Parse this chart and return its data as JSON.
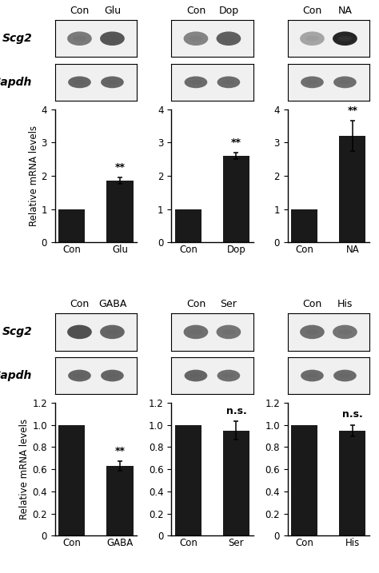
{
  "top_panels": [
    {
      "categories": [
        "Con",
        "Glu"
      ],
      "values": [
        1.0,
        1.85
      ],
      "errors": [
        0.0,
        0.1
      ],
      "ylim": [
        0,
        4
      ],
      "yticks": [
        0,
        1,
        2,
        3,
        4
      ],
      "sig_label": "**",
      "sig_bar_idx": 1,
      "scg2_alphas": [
        0.55,
        0.72
      ],
      "gapdh_alphas": [
        0.65,
        0.65
      ]
    },
    {
      "categories": [
        "Con",
        "Dop"
      ],
      "values": [
        1.0,
        2.6
      ],
      "errors": [
        0.0,
        0.1
      ],
      "ylim": [
        0,
        4
      ],
      "yticks": [
        0,
        1,
        2,
        3,
        4
      ],
      "sig_label": "**",
      "sig_bar_idx": 1,
      "scg2_alphas": [
        0.5,
        0.68
      ],
      "gapdh_alphas": [
        0.62,
        0.62
      ]
    },
    {
      "categories": [
        "Con",
        "NA"
      ],
      "values": [
        1.0,
        3.2
      ],
      "errors": [
        0.0,
        0.45
      ],
      "ylim": [
        0,
        4
      ],
      "yticks": [
        0,
        1,
        2,
        3,
        4
      ],
      "sig_label": "**",
      "sig_bar_idx": 1,
      "scg2_alphas": [
        0.35,
        0.95
      ],
      "gapdh_alphas": [
        0.6,
        0.6
      ]
    }
  ],
  "bottom_panels": [
    {
      "categories": [
        "Con",
        "GABA"
      ],
      "values": [
        1.0,
        0.63
      ],
      "errors": [
        0.0,
        0.04
      ],
      "ylim": [
        0,
        1.2
      ],
      "yticks": [
        0,
        0.2,
        0.4,
        0.6,
        0.8,
        1.0,
        1.2
      ],
      "sig_label": "**",
      "sig_bar_idx": 1,
      "scg2_alphas": [
        0.75,
        0.65
      ],
      "gapdh_alphas": [
        0.65,
        0.65
      ]
    },
    {
      "categories": [
        "Con",
        "Ser"
      ],
      "values": [
        1.0,
        0.95
      ],
      "errors": [
        0.0,
        0.08
      ],
      "ylim": [
        0,
        1.2
      ],
      "yticks": [
        0,
        0.2,
        0.4,
        0.6,
        0.8,
        1.0,
        1.2
      ],
      "sig_label": "n.s.",
      "sig_bar_idx": 1,
      "scg2_alphas": [
        0.6,
        0.58
      ],
      "gapdh_alphas": [
        0.65,
        0.6
      ]
    },
    {
      "categories": [
        "Con",
        "His"
      ],
      "values": [
        1.0,
        0.95
      ],
      "errors": [
        0.0,
        0.05
      ],
      "ylim": [
        0,
        1.2
      ],
      "yticks": [
        0,
        0.2,
        0.4,
        0.6,
        0.8,
        1.0,
        1.2
      ],
      "sig_label": "n.s.",
      "sig_bar_idx": 1,
      "scg2_alphas": [
        0.6,
        0.58
      ],
      "gapdh_alphas": [
        0.62,
        0.62
      ]
    }
  ],
  "bar_color": "#1a1a1a",
  "bar_width": 0.55,
  "ylabel": "Relative mRNA levels",
  "ylabel_fontsize": 8.5,
  "tick_fontsize": 8.5,
  "label_fontsize": 9,
  "sig_fontsize": 9,
  "blot_label_fontsize": 10,
  "scg2_label": "Scg2",
  "gapdh_label": "Gapdh",
  "blot_bg": "#f0f0f0"
}
